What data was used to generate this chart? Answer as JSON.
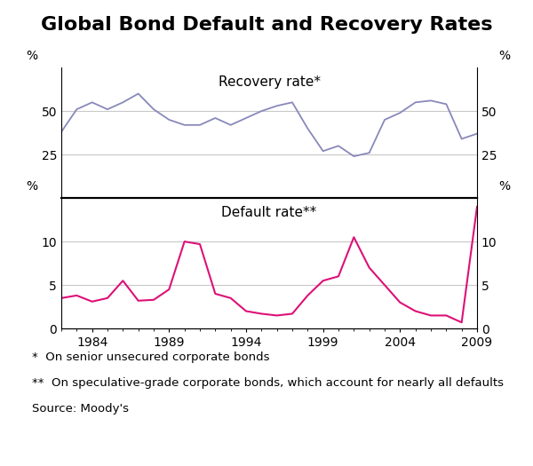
{
  "title": "Global Bond Default and Recovery Rates",
  "recovery_label": "Recovery rate*",
  "default_label": "Default rate**",
  "footnote1": "*  On senior unsecured corporate bonds",
  "footnote2": "**  On speculative-grade corporate bonds, which account for nearly all defaults",
  "footnote3": "Source: Moody's",
  "recovery_years": [
    1982,
    1983,
    1984,
    1985,
    1986,
    1987,
    1988,
    1989,
    1990,
    1991,
    1992,
    1993,
    1994,
    1995,
    1996,
    1997,
    1998,
    1999,
    2000,
    2001,
    2002,
    2003,
    2004,
    2005,
    2006,
    2007,
    2008,
    2009
  ],
  "recovery_values": [
    38,
    51,
    55,
    51,
    55,
    60,
    51,
    45,
    42,
    42,
    46,
    42,
    46,
    50,
    53,
    55,
    40,
    27,
    30,
    24,
    26,
    45,
    49,
    55,
    56,
    54,
    34,
    37
  ],
  "default_years": [
    1982,
    1983,
    1984,
    1985,
    1986,
    1987,
    1988,
    1989,
    1990,
    1991,
    1992,
    1993,
    1994,
    1995,
    1996,
    1997,
    1998,
    1999,
    2000,
    2001,
    2002,
    2003,
    2004,
    2005,
    2006,
    2007,
    2008,
    2009
  ],
  "default_values": [
    3.5,
    3.8,
    3.1,
    3.5,
    5.5,
    3.2,
    3.3,
    4.5,
    10.0,
    9.7,
    4.0,
    3.5,
    2.0,
    1.7,
    1.5,
    1.7,
    3.8,
    5.5,
    6.0,
    10.5,
    7.0,
    5.0,
    3.0,
    2.0,
    1.5,
    1.5,
    0.7,
    14.0
  ],
  "recovery_color": "#8888bb",
  "default_color": "#dd1177",
  "recovery_ylim": [
    0,
    75
  ],
  "recovery_yticks": [
    25,
    50
  ],
  "default_ylim": [
    0,
    15
  ],
  "default_yticks": [
    0,
    5,
    10
  ],
  "xlim": [
    1982,
    2009
  ],
  "xticks": [
    1984,
    1989,
    1994,
    1999,
    2004,
    2009
  ],
  "background_color": "#ffffff",
  "grid_color": "#c8c8c8",
  "title_fontsize": 16,
  "label_fontsize": 11,
  "tick_fontsize": 10,
  "footnote_fontsize": 9.5
}
